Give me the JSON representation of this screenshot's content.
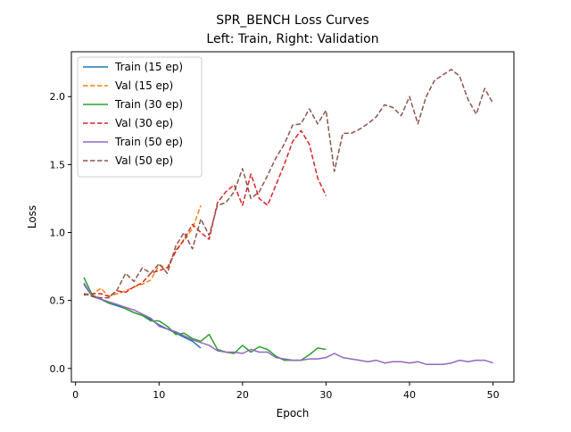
{
  "chart_data": {
    "type": "line",
    "title": "SPR_BENCH Loss Curves",
    "subtitle": "Left: Train, Right: Validation",
    "xlabel": "Epoch",
    "ylabel": "Loss",
    "xlim": [
      -0.5,
      52.5
    ],
    "ylim": [
      -0.1,
      2.33
    ],
    "xticks": [
      0,
      10,
      20,
      30,
      40,
      50
    ],
    "xtick_labels": [
      "0",
      "10",
      "20",
      "30",
      "40",
      "50"
    ],
    "yticks": [
      0.0,
      0.5,
      1.0,
      1.5,
      2.0
    ],
    "ytick_labels": [
      "0.0",
      "0.5",
      "1.0",
      "1.5",
      "2.0"
    ],
    "grid": false,
    "legend_position": "top-left",
    "series": [
      {
        "name": "Train (15 ep)",
        "color": "#1f77b4",
        "dash": "solid",
        "x": [
          1,
          2,
          3,
          4,
          5,
          6,
          7,
          8,
          9,
          10,
          11,
          12,
          13,
          14,
          15
        ],
        "y": [
          0.62,
          0.53,
          0.51,
          0.48,
          0.46,
          0.44,
          0.41,
          0.39,
          0.36,
          0.32,
          0.29,
          0.26,
          0.23,
          0.2,
          0.15
        ]
      },
      {
        "name": "Val (15 ep)",
        "color": "#ff7f0e",
        "dash": "dashed",
        "x": [
          1,
          2,
          3,
          4,
          5,
          6,
          7,
          8,
          9,
          10,
          11,
          12,
          13,
          14,
          15
        ],
        "y": [
          0.55,
          0.54,
          0.59,
          0.53,
          0.55,
          0.57,
          0.6,
          0.62,
          0.65,
          0.76,
          0.74,
          0.87,
          0.94,
          1.03,
          1.2
        ]
      },
      {
        "name": "Train (30 ep)",
        "color": "#2ca02c",
        "dash": "solid",
        "x": [
          1,
          2,
          3,
          4,
          5,
          6,
          7,
          8,
          9,
          10,
          11,
          12,
          13,
          14,
          15,
          16,
          17,
          18,
          19,
          20,
          21,
          22,
          23,
          24,
          25,
          26,
          27,
          28,
          29,
          30
        ],
        "y": [
          0.67,
          0.54,
          0.51,
          0.48,
          0.47,
          0.44,
          0.41,
          0.39,
          0.35,
          0.35,
          0.31,
          0.25,
          0.26,
          0.22,
          0.2,
          0.25,
          0.14,
          0.12,
          0.11,
          0.17,
          0.12,
          0.16,
          0.14,
          0.09,
          0.06,
          0.06,
          0.06,
          0.1,
          0.15,
          0.14
        ]
      },
      {
        "name": "Val (30 ep)",
        "color": "#d62728",
        "dash": "dashed",
        "x": [
          1,
          2,
          3,
          4,
          5,
          6,
          7,
          8,
          9,
          10,
          11,
          12,
          13,
          14,
          15,
          16,
          17,
          18,
          19,
          20,
          21,
          22,
          23,
          24,
          25,
          26,
          27,
          28,
          29,
          30
        ],
        "y": [
          0.54,
          0.55,
          0.55,
          0.53,
          0.57,
          0.56,
          0.6,
          0.63,
          0.7,
          0.72,
          0.74,
          0.86,
          0.95,
          1.06,
          1.0,
          0.95,
          1.22,
          1.3,
          1.35,
          1.2,
          1.43,
          1.25,
          1.2,
          1.35,
          1.5,
          1.67,
          1.75,
          1.65,
          1.4,
          1.27
        ]
      },
      {
        "name": "Train (50 ep)",
        "color": "#9467bd",
        "dash": "solid",
        "x": [
          1,
          2,
          3,
          4,
          5,
          6,
          7,
          8,
          9,
          10,
          11,
          12,
          13,
          14,
          15,
          16,
          17,
          18,
          19,
          20,
          21,
          22,
          23,
          24,
          25,
          26,
          27,
          28,
          29,
          30,
          31,
          32,
          33,
          34,
          35,
          36,
          37,
          38,
          39,
          40,
          41,
          42,
          43,
          44,
          45,
          46,
          47,
          48,
          49,
          50
        ],
        "y": [
          0.63,
          0.53,
          0.51,
          0.49,
          0.47,
          0.45,
          0.43,
          0.4,
          0.37,
          0.31,
          0.29,
          0.27,
          0.24,
          0.21,
          0.19,
          0.17,
          0.13,
          0.12,
          0.12,
          0.11,
          0.14,
          0.12,
          0.12,
          0.08,
          0.07,
          0.06,
          0.06,
          0.07,
          0.07,
          0.08,
          0.11,
          0.08,
          0.07,
          0.06,
          0.05,
          0.06,
          0.04,
          0.05,
          0.05,
          0.04,
          0.05,
          0.03,
          0.03,
          0.03,
          0.04,
          0.06,
          0.05,
          0.06,
          0.06,
          0.04
        ]
      },
      {
        "name": "Val (50 ep)",
        "color": "#8c564b",
        "dash": "dashed",
        "x": [
          1,
          2,
          3,
          4,
          5,
          6,
          7,
          8,
          9,
          10,
          11,
          12,
          13,
          14,
          15,
          16,
          17,
          18,
          19,
          20,
          21,
          22,
          23,
          24,
          25,
          26,
          27,
          28,
          29,
          30,
          31,
          32,
          33,
          34,
          35,
          36,
          37,
          38,
          39,
          40,
          41,
          42,
          43,
          44,
          45,
          46,
          47,
          48,
          49,
          50
        ],
        "y": [
          0.55,
          0.53,
          0.52,
          0.52,
          0.58,
          0.7,
          0.64,
          0.74,
          0.7,
          0.77,
          0.7,
          0.9,
          1.0,
          0.88,
          1.1,
          0.98,
          1.2,
          1.22,
          1.3,
          1.47,
          1.25,
          1.3,
          1.42,
          1.55,
          1.65,
          1.79,
          1.8,
          1.91,
          1.8,
          1.9,
          1.45,
          1.73,
          1.73,
          1.76,
          1.8,
          1.85,
          1.94,
          1.92,
          1.86,
          2.0,
          1.8,
          2.0,
          2.12,
          2.16,
          2.2,
          2.15,
          1.98,
          1.87,
          2.06,
          1.95
        ]
      }
    ]
  }
}
